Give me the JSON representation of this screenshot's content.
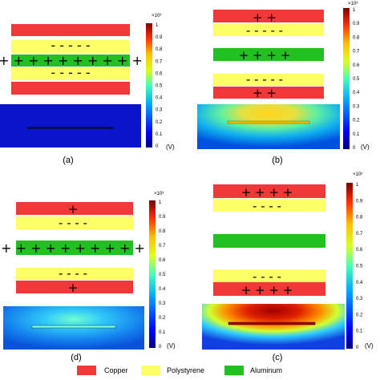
{
  "colors": {
    "copper": "#f03838",
    "polystyrene": "#ffff66",
    "aluminum": "#22c022"
  },
  "panels": [
    {
      "caption": "(a)",
      "colorbar_scale": "×10³",
      "colorbar_unit": "(V)",
      "colorbar_ticks": [
        "1",
        "0.9",
        "0.8",
        "0.7",
        "0.6",
        "0.5",
        "0.4",
        "0.3",
        "0.2",
        "0.1",
        "0"
      ],
      "sign_rows": [
        "- - - - -",
        "+ + + + + + + + + +",
        "- - - - -"
      ]
    },
    {
      "caption": "(b)",
      "colorbar_scale": "×10³",
      "colorbar_unit": "(V)",
      "colorbar_ticks": [
        "1",
        "0.9",
        "0.8",
        "0.7",
        "0.6",
        "0.5",
        "0.4",
        "0.3",
        "0.2",
        "0.1",
        "0"
      ],
      "sign_rows": [
        "+ +",
        "- - - - -",
        "+ + + +",
        "- - - - -",
        "+ +"
      ]
    },
    {
      "caption": "(d)",
      "colorbar_scale": "×10³",
      "colorbar_unit": "(V)",
      "colorbar_ticks": [
        "1",
        "0.9",
        "0.8",
        "0.7",
        "0.6",
        "0.5",
        "0.4",
        "0.3",
        "0.2",
        "0.1",
        "0"
      ],
      "sign_rows": [
        "+",
        "- - - -",
        "+ + + + + + + + + +",
        "- - - -",
        "+"
      ]
    },
    {
      "caption": "(c)",
      "colorbar_scale": "×10³",
      "colorbar_unit": "(V)",
      "colorbar_ticks": [
        "1",
        "0.9",
        "0.8",
        "0.7",
        "0.6",
        "0.5",
        "0.4",
        "0.3",
        "0.2",
        "0.1",
        "0"
      ],
      "sign_rows": [
        "+ + + +",
        "- - - -",
        "- - - -",
        "+ + + +"
      ]
    }
  ],
  "legend": [
    {
      "label": "Copper",
      "color_key": "copper"
    },
    {
      "label": "Polystyrene",
      "color_key": "polystyrene"
    },
    {
      "label": "Aluminum",
      "color_key": "aluminum"
    }
  ]
}
